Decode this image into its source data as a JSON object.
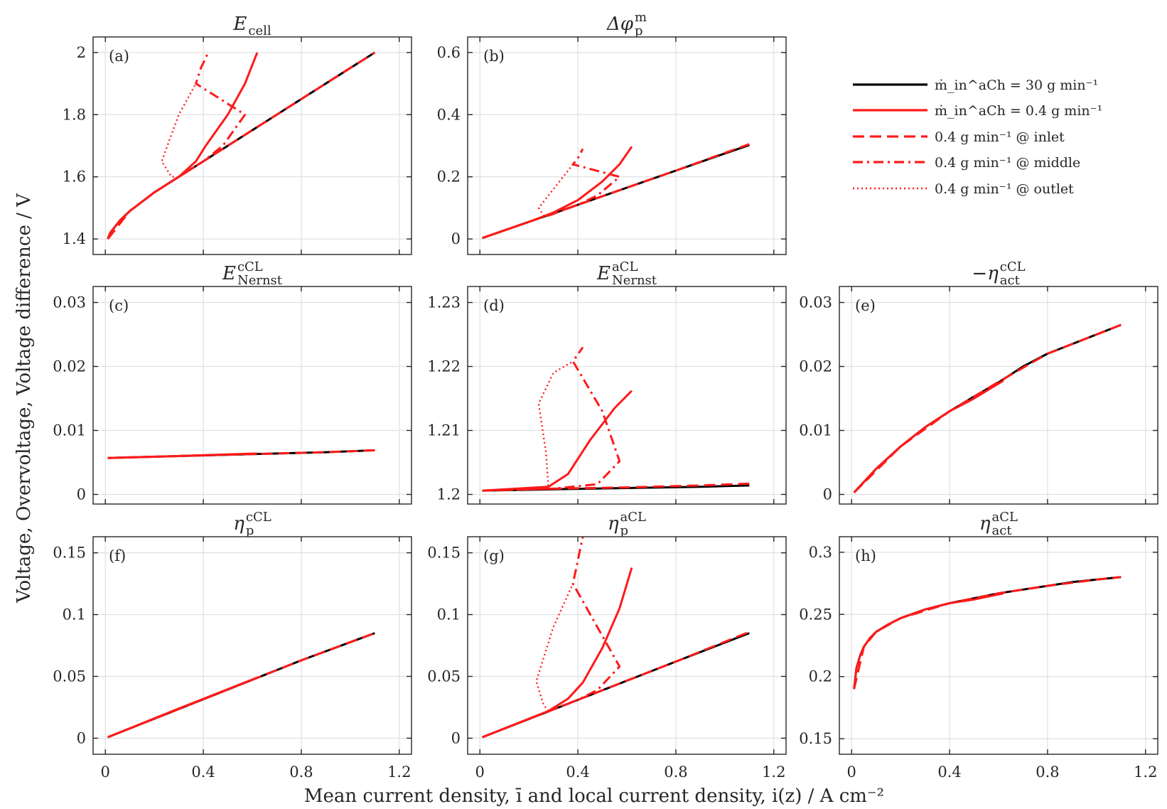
{
  "figure": {
    "xlabel": "Mean current density, ī and local current density, i(z) / A cm⁻²",
    "ylabel": "Voltage, Overvoltage, Voltage difference / V"
  },
  "colors": {
    "black": "#000000",
    "red": "#ff1a1a"
  },
  "legend": {
    "entries": [
      {
        "label": "ṁ_in^aCh = 30 g min⁻¹",
        "color": "#000000",
        "dash": "solid"
      },
      {
        "label": "ṁ_in^aCh = 0.4 g min⁻¹",
        "color": "#ff1a1a",
        "dash": "solid"
      },
      {
        "label": "0.4 g min⁻¹ @ inlet",
        "color": "#ff1a1a",
        "dash": "dashed"
      },
      {
        "label": "0.4 g min⁻¹ @ middle",
        "color": "#ff1a1a",
        "dash": "dashdot"
      },
      {
        "label": "0.4 g min⁻¹ @ outlet",
        "color": "#ff1a1a",
        "dash": "dotted"
      }
    ]
  },
  "chart_data": [
    {
      "id": "a",
      "letter": "(a)",
      "title_main": "E",
      "title_sub": "cell",
      "title_sup": "",
      "type": "line",
      "xlim": [
        -0.05,
        1.25
      ],
      "xticks": [
        0,
        0.4,
        0.8,
        1.2
      ],
      "xticklabels": [
        "0",
        "0.4",
        "0.8",
        "1.2"
      ],
      "ylim": [
        1.35,
        2.05
      ],
      "yticks": [
        1.4,
        1.6,
        1.8,
        2.0
      ],
      "yticklabels": [
        "1.4",
        "1.6",
        "1.8",
        "2"
      ],
      "series": [
        {
          "name": "30 g/min",
          "color": "#000000",
          "dash": "solid",
          "x": [
            0.01,
            0.02,
            0.04,
            0.06,
            0.1,
            0.15,
            0.2,
            0.3,
            0.4,
            0.6,
            0.8,
            1.0,
            1.1
          ],
          "y": [
            1.4,
            1.42,
            1.44,
            1.46,
            1.49,
            1.52,
            1.55,
            1.6,
            1.65,
            1.75,
            1.85,
            1.95,
            2.0
          ]
        },
        {
          "name": "0.4 g/min",
          "color": "#ff1a1a",
          "dash": "solid",
          "x": [
            0.01,
            0.02,
            0.04,
            0.06,
            0.1,
            0.15,
            0.2,
            0.3,
            0.37,
            0.41,
            0.5,
            0.57,
            0.62
          ],
          "y": [
            1.4,
            1.42,
            1.44,
            1.46,
            1.49,
            1.52,
            1.55,
            1.6,
            1.65,
            1.7,
            1.8,
            1.9,
            2.0
          ]
        },
        {
          "name": "inlet",
          "color": "#ff1a1a",
          "dash": "dashed",
          "x": [
            0.01,
            0.1,
            0.2,
            0.3,
            0.4,
            0.6,
            0.8,
            1.0,
            1.1
          ],
          "y": [
            1.4,
            1.49,
            1.55,
            1.6,
            1.65,
            1.75,
            1.85,
            1.95,
            2.0
          ]
        },
        {
          "name": "middle",
          "color": "#ff1a1a",
          "dash": "dashdot",
          "x": [
            0.3,
            0.4,
            0.48,
            0.57,
            0.37,
            0.39,
            0.42
          ],
          "y": [
            1.6,
            1.65,
            1.7,
            1.8,
            1.9,
            1.95,
            2.0
          ]
        },
        {
          "name": "outlet",
          "color": "#ff1a1a",
          "dash": "dotted",
          "x": [
            0.28,
            0.27,
            0.23,
            0.3,
            0.37
          ],
          "y": [
            1.6,
            1.6,
            1.65,
            1.8,
            1.9
          ]
        }
      ]
    },
    {
      "id": "b",
      "letter": "(b)",
      "title_main": "Δφ",
      "title_sub": "p",
      "title_sup": "m",
      "type": "line",
      "xlim": [
        -0.05,
        1.25
      ],
      "xticks": [
        0,
        0.4,
        0.8,
        1.2
      ],
      "xticklabels": [
        "0",
        "0.4",
        "0.8",
        "1.2"
      ],
      "ylim": [
        -0.05,
        0.65
      ],
      "yticks": [
        0,
        0.2,
        0.4,
        0.6
      ],
      "yticklabels": [
        "0",
        "0.2",
        "0.4",
        "0.6"
      ],
      "series": [
        {
          "name": "30 g/min",
          "color": "#000000",
          "dash": "solid",
          "x": [
            0.01,
            0.2,
            0.4,
            0.6,
            0.8,
            1.0,
            1.1
          ],
          "y": [
            0.003,
            0.055,
            0.11,
            0.165,
            0.22,
            0.275,
            0.302
          ]
        },
        {
          "name": "0.4 g/min",
          "color": "#ff1a1a",
          "dash": "solid",
          "x": [
            0.01,
            0.2,
            0.3,
            0.4,
            0.5,
            0.57,
            0.62
          ],
          "y": [
            0.003,
            0.055,
            0.085,
            0.125,
            0.185,
            0.24,
            0.297
          ]
        },
        {
          "name": "inlet",
          "color": "#ff1a1a",
          "dash": "dashed",
          "x": [
            0.01,
            0.2,
            0.4,
            0.6,
            0.8,
            1.0,
            1.1
          ],
          "y": [
            0.003,
            0.055,
            0.11,
            0.165,
            0.22,
            0.277,
            0.305
          ]
        },
        {
          "name": "middle",
          "color": "#ff1a1a",
          "dash": "dashdot",
          "x": [
            0.28,
            0.4,
            0.48,
            0.57,
            0.38,
            0.4,
            0.42
          ],
          "y": [
            0.075,
            0.11,
            0.14,
            0.2,
            0.24,
            0.26,
            0.29
          ]
        },
        {
          "name": "outlet",
          "color": "#ff1a1a",
          "dash": "dotted",
          "x": [
            0.28,
            0.26,
            0.24,
            0.3,
            0.38
          ],
          "y": [
            0.075,
            0.075,
            0.1,
            0.16,
            0.24
          ]
        }
      ]
    },
    {
      "id": "c",
      "letter": "(c)",
      "title_main": "E",
      "title_sub": "Nernst",
      "title_sup": "cCL",
      "type": "line",
      "xlim": [
        -0.05,
        1.25
      ],
      "xticks": [
        0,
        0.4,
        0.8,
        1.2
      ],
      "xticklabels": [
        "0",
        "0.4",
        "0.8",
        "1.2"
      ],
      "ylim": [
        -0.0015,
        0.0325
      ],
      "yticks": [
        0,
        0.01,
        0.02,
        0.03
      ],
      "yticklabels": [
        "0",
        "0.01",
        "0.02",
        "0.03"
      ],
      "series": [
        {
          "name": "30 g/min",
          "color": "#000000",
          "dash": "solid",
          "x": [
            0.01,
            0.3,
            0.6,
            0.9,
            1.1
          ],
          "y": [
            0.0057,
            0.006,
            0.0063,
            0.0066,
            0.0069
          ]
        },
        {
          "name": "0.4 g/min",
          "color": "#ff1a1a",
          "dash": "solid",
          "x": [
            0.01,
            0.3,
            0.62
          ],
          "y": [
            0.0057,
            0.006,
            0.0064
          ]
        },
        {
          "name": "inlet",
          "color": "#ff1a1a",
          "dash": "dashed",
          "x": [
            0.01,
            0.3,
            0.6,
            0.9,
            1.1
          ],
          "y": [
            0.0057,
            0.006,
            0.0063,
            0.0066,
            0.0069
          ]
        }
      ]
    },
    {
      "id": "d",
      "letter": "(d)",
      "title_main": "E",
      "title_sub": "Nernst",
      "title_sup": "aCL",
      "type": "line",
      "xlim": [
        -0.05,
        1.25
      ],
      "xticks": [
        0,
        0.4,
        0.8,
        1.2
      ],
      "xticklabels": [
        "0",
        "0.4",
        "0.8",
        "1.2"
      ],
      "ylim": [
        1.1985,
        1.2325
      ],
      "yticks": [
        1.2,
        1.21,
        1.22,
        1.23
      ],
      "yticklabels": [
        "1.2",
        "1.21",
        "1.22",
        "1.23"
      ],
      "series": [
        {
          "name": "30 g/min",
          "color": "#000000",
          "dash": "solid",
          "x": [
            0.01,
            0.3,
            0.6,
            0.9,
            1.1
          ],
          "y": [
            1.2006,
            1.2008,
            1.201,
            1.2012,
            1.2014
          ]
        },
        {
          "name": "0.4 g/min",
          "color": "#ff1a1a",
          "dash": "solid",
          "x": [
            0.01,
            0.28,
            0.36,
            0.45,
            0.55,
            0.62
          ],
          "y": [
            1.2006,
            1.2012,
            1.2032,
            1.2085,
            1.2135,
            1.2162
          ]
        },
        {
          "name": "inlet",
          "color": "#ff1a1a",
          "dash": "dashed",
          "x": [
            0.01,
            0.3,
            0.6,
            0.9,
            1.1
          ],
          "y": [
            1.2006,
            1.2009,
            1.2011,
            1.2014,
            1.2017
          ]
        },
        {
          "name": "middle",
          "color": "#ff1a1a",
          "dash": "dashdot",
          "x": [
            0.01,
            0.3,
            0.48,
            0.57,
            0.5,
            0.38,
            0.42
          ],
          "y": [
            1.2006,
            1.2009,
            1.2016,
            1.2052,
            1.213,
            1.2208,
            1.223
          ]
        },
        {
          "name": "outlet",
          "color": "#ff1a1a",
          "dash": "dotted",
          "x": [
            0.01,
            0.28,
            0.27,
            0.24,
            0.3,
            0.38
          ],
          "y": [
            1.2006,
            1.201,
            1.2065,
            1.2142,
            1.219,
            1.2208
          ]
        }
      ]
    },
    {
      "id": "e",
      "letter": "(e)",
      "title_main": "−η",
      "title_sub": "act",
      "title_sup": "cCL",
      "type": "line",
      "xlim": [
        -0.05,
        1.25
      ],
      "xticks": [
        0,
        0.4,
        0.8,
        1.2
      ],
      "xticklabels": [
        "0",
        "0.4",
        "0.8",
        "1.2"
      ],
      "ylim": [
        -0.0015,
        0.0325
      ],
      "yticks": [
        0,
        0.01,
        0.02,
        0.03
      ],
      "yticklabels": [
        "0",
        "0.01",
        "0.02",
        "0.03"
      ],
      "series": [
        {
          "name": "30 g/min",
          "color": "#000000",
          "dash": "solid",
          "x": [
            0.01,
            0.1,
            0.2,
            0.3,
            0.4,
            0.5,
            0.6,
            0.7,
            0.8,
            0.9,
            1.0,
            1.1
          ],
          "y": [
            0.0003,
            0.004,
            0.0075,
            0.0105,
            0.013,
            0.0153,
            0.0175,
            0.02,
            0.022,
            0.0235,
            0.025,
            0.0265
          ]
        },
        {
          "name": "0.4 g/min",
          "color": "#ff1a1a",
          "dash": "solid",
          "x": [
            0.01,
            0.1,
            0.2,
            0.3,
            0.4,
            0.5,
            0.62
          ],
          "y": [
            0.0003,
            0.004,
            0.0075,
            0.0105,
            0.013,
            0.015,
            0.0178
          ]
        },
        {
          "name": "inlet",
          "color": "#ff1a1a",
          "dash": "dashed",
          "x": [
            0.01,
            0.2,
            0.4,
            0.6,
            0.8,
            1.0,
            1.1
          ],
          "y": [
            0.0003,
            0.0075,
            0.013,
            0.0176,
            0.022,
            0.025,
            0.0265
          ]
        }
      ]
    },
    {
      "id": "f",
      "letter": "(f)",
      "title_main": "η",
      "title_sub": "p",
      "title_sup": "cCL",
      "type": "line",
      "xlim": [
        -0.05,
        1.25
      ],
      "xticks": [
        0,
        0.4,
        0.8,
        1.2
      ],
      "xticklabels": [
        "0",
        "0.4",
        "0.8",
        "1.2"
      ],
      "ylim": [
        -0.013,
        0.163
      ],
      "yticks": [
        0,
        0.05,
        0.1,
        0.15
      ],
      "yticklabels": [
        "0",
        "0.05",
        "0.1",
        "0.15"
      ],
      "series": [
        {
          "name": "30 g/min",
          "color": "#000000",
          "dash": "solid",
          "x": [
            0.01,
            0.4,
            0.8,
            1.1
          ],
          "y": [
            0.0008,
            0.0315,
            0.063,
            0.085
          ]
        },
        {
          "name": "0.4 g/min",
          "color": "#ff1a1a",
          "dash": "solid",
          "x": [
            0.01,
            0.3,
            0.62
          ],
          "y": [
            0.0008,
            0.024,
            0.049
          ]
        },
        {
          "name": "inlet",
          "color": "#ff1a1a",
          "dash": "dashed",
          "x": [
            0.01,
            0.4,
            0.8,
            1.1
          ],
          "y": [
            0.0008,
            0.0315,
            0.063,
            0.085
          ]
        }
      ]
    },
    {
      "id": "g",
      "letter": "(g)",
      "title_main": "η",
      "title_sub": "p",
      "title_sup": "aCL",
      "type": "line",
      "xlim": [
        -0.05,
        1.25
      ],
      "xticks": [
        0,
        0.4,
        0.8,
        1.2
      ],
      "xticklabels": [
        "0",
        "0.4",
        "0.8",
        "1.2"
      ],
      "ylim": [
        -0.013,
        0.163
      ],
      "yticks": [
        0,
        0.05,
        0.1,
        0.15
      ],
      "yticklabels": [
        "0",
        "0.05",
        "0.1",
        "0.15"
      ],
      "series": [
        {
          "name": "30 g/min",
          "color": "#000000",
          "dash": "solid",
          "x": [
            0.01,
            0.4,
            0.8,
            1.1
          ],
          "y": [
            0.0008,
            0.031,
            0.062,
            0.085
          ]
        },
        {
          "name": "0.4 g/min",
          "color": "#ff1a1a",
          "dash": "solid",
          "x": [
            0.01,
            0.28,
            0.36,
            0.42,
            0.5,
            0.57,
            0.62
          ],
          "y": [
            0.0008,
            0.022,
            0.032,
            0.045,
            0.073,
            0.105,
            0.138
          ]
        },
        {
          "name": "inlet",
          "color": "#ff1a1a",
          "dash": "dashed",
          "x": [
            0.01,
            0.4,
            0.8,
            1.1
          ],
          "y": [
            0.0008,
            0.031,
            0.062,
            0.086
          ]
        },
        {
          "name": "middle",
          "color": "#ff1a1a",
          "dash": "dashdot",
          "x": [
            0.28,
            0.4,
            0.48,
            0.57,
            0.38,
            0.42
          ],
          "y": [
            0.022,
            0.031,
            0.039,
            0.058,
            0.125,
            0.163
          ]
        },
        {
          "name": "outlet",
          "color": "#ff1a1a",
          "dash": "dotted",
          "x": [
            0.28,
            0.26,
            0.23,
            0.3,
            0.38
          ],
          "y": [
            0.022,
            0.027,
            0.046,
            0.09,
            0.125
          ]
        }
      ]
    },
    {
      "id": "h",
      "letter": "(h)",
      "title_main": "η",
      "title_sub": "act",
      "title_sup": "aCL",
      "type": "line",
      "xlim": [
        -0.05,
        1.25
      ],
      "xticks": [
        0,
        0.4,
        0.8,
        1.2
      ],
      "xticklabels": [
        "0",
        "0.4",
        "0.8",
        "1.2"
      ],
      "ylim": [
        0.1375,
        0.3125
      ],
      "yticks": [
        0.15,
        0.2,
        0.25,
        0.3
      ],
      "yticklabels": [
        "0.15",
        "0.2",
        "0.25",
        "0.3"
      ],
      "series": [
        {
          "name": "30 g/min",
          "color": "#000000",
          "dash": "solid",
          "x": [
            0.01,
            0.02,
            0.035,
            0.05,
            0.075,
            0.1,
            0.15,
            0.2,
            0.3,
            0.4,
            0.5,
            0.6,
            0.7,
            0.8,
            0.9,
            1.0,
            1.1
          ],
          "y": [
            0.19,
            0.207,
            0.217,
            0.224,
            0.231,
            0.236,
            0.242,
            0.247,
            0.254,
            0.259,
            0.263,
            0.267,
            0.27,
            0.273,
            0.276,
            0.278,
            0.28
          ]
        },
        {
          "name": "0.4 g/min",
          "color": "#ff1a1a",
          "dash": "solid",
          "x": [
            0.01,
            0.02,
            0.035,
            0.05,
            0.075,
            0.1,
            0.15,
            0.2,
            0.3,
            0.4,
            0.5,
            0.62
          ],
          "y": [
            0.19,
            0.207,
            0.217,
            0.224,
            0.231,
            0.236,
            0.242,
            0.247,
            0.254,
            0.259,
            0.262,
            0.267
          ]
        },
        {
          "name": "inlet",
          "color": "#ff1a1a",
          "dash": "dashed",
          "x": [
            0.01,
            0.05,
            0.1,
            0.2,
            0.4,
            0.6,
            0.8,
            1.0,
            1.1
          ],
          "y": [
            0.19,
            0.224,
            0.236,
            0.247,
            0.259,
            0.267,
            0.273,
            0.278,
            0.28
          ]
        }
      ]
    }
  ]
}
